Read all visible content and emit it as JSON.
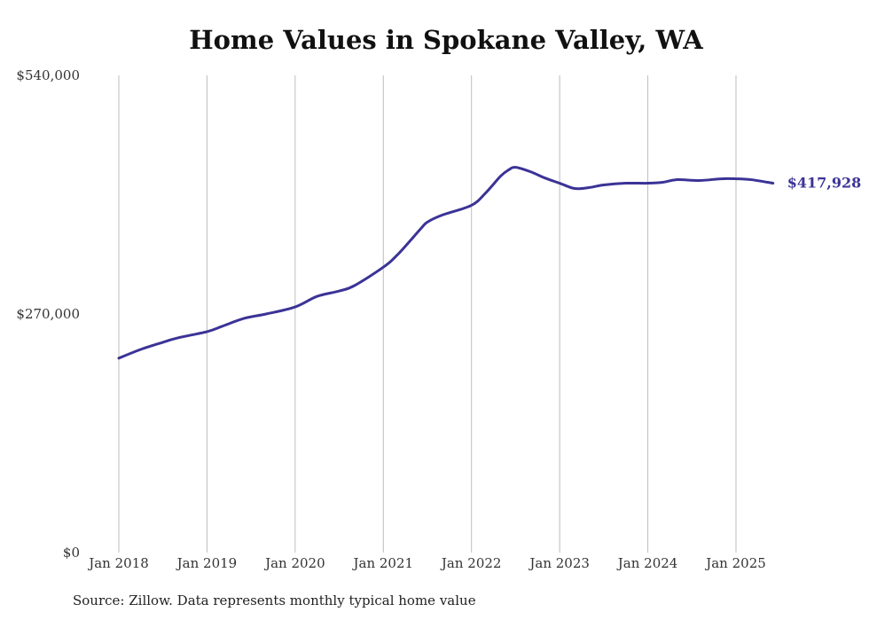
{
  "chart_data": {
    "type": "line",
    "title": "Home Values in Spokane Valley, WA",
    "xlabel": "",
    "ylabel": "",
    "ylim": [
      0,
      540000
    ],
    "y_ticks": [
      {
        "value": 0,
        "label": "$0"
      },
      {
        "value": 270000,
        "label": "$270,000"
      },
      {
        "value": 540000,
        "label": "$540,000"
      }
    ],
    "x_ticks": [
      {
        "value": 2018.0,
        "label": "Jan 2018"
      },
      {
        "value": 2019.0,
        "label": "Jan 2019"
      },
      {
        "value": 2020.0,
        "label": "Jan 2020"
      },
      {
        "value": 2021.0,
        "label": "Jan 2021"
      },
      {
        "value": 2022.0,
        "label": "Jan 2022"
      },
      {
        "value": 2023.0,
        "label": "Jan 2023"
      },
      {
        "value": 2024.0,
        "label": "Jan 2024"
      },
      {
        "value": 2025.0,
        "label": "Jan 2025"
      }
    ],
    "grid": {
      "vertical": true,
      "horizontal": false
    },
    "legend": "none",
    "line_color": "#3b3396",
    "end_label": "$417,928",
    "series": [
      {
        "x": [
          2018.0,
          2018.25,
          2018.5,
          2018.67,
          2019.0,
          2019.17,
          2019.42,
          2019.67,
          2020.0,
          2020.25,
          2020.5,
          2020.67,
          2021.0,
          2021.17,
          2021.42,
          2021.5,
          2021.67,
          2022.0,
          2022.17,
          2022.33,
          2022.42,
          2022.5,
          2022.67,
          2022.83,
          2023.0,
          2023.17,
          2023.33,
          2023.5,
          2023.75,
          2024.0,
          2024.17,
          2024.33,
          2024.58,
          2024.83,
          2025.0,
          2025.17,
          2025.42
        ],
        "y": [
          220000,
          230000,
          238000,
          243000,
          250000,
          256000,
          265000,
          270000,
          278000,
          290000,
          296000,
          302000,
          323000,
          338000,
          366000,
          374000,
          382000,
          393000,
          408000,
          426000,
          433000,
          436000,
          431000,
          424000,
          418000,
          412000,
          413000,
          416000,
          418000,
          418000,
          419000,
          422000,
          421000,
          423000,
          423000,
          422000,
          418000
        ]
      }
    ]
  },
  "source": "Source: Zillow. Data represents monthly typical home value"
}
